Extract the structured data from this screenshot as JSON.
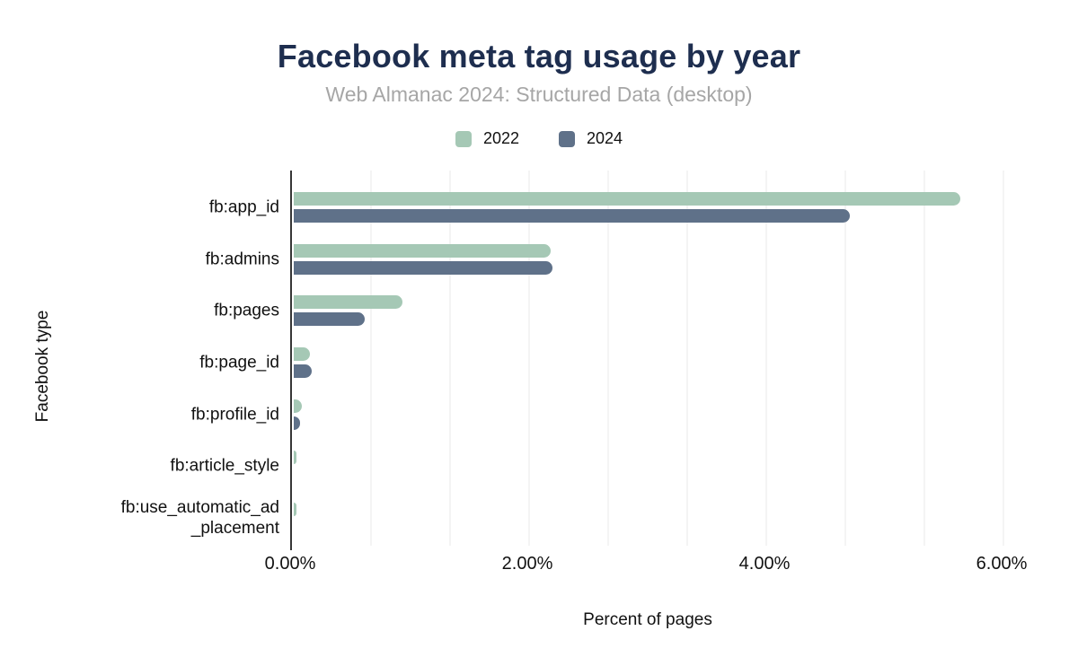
{
  "colors": {
    "background": "#ffffff",
    "title_text": "#1e2e4f",
    "subtitle_text": "#a6a6a6",
    "axis_text": "#111111",
    "axis_line": "#373737",
    "gridline": "#f4f4f4"
  },
  "chart_data": {
    "type": "bar",
    "orientation": "horizontal",
    "title": "Facebook meta tag usage by year",
    "subtitle": "Web Almanac 2024: Structured Data (desktop)",
    "xlabel": "Percent of pages",
    "ylabel": "Facebook type",
    "categories": [
      "fb:app_id",
      "fb:admins",
      "fb:pages",
      "fb:page_id",
      "fb:profile_id",
      "fb:article_style",
      "fb:use_automatic_ad\n_placement"
    ],
    "series": [
      {
        "name": "2022",
        "color": "#a5c8b5",
        "values": [
          5.62,
          2.17,
          0.92,
          0.14,
          0.07,
          0.02,
          0.01
        ]
      },
      {
        "name": "2024",
        "color": "#5f7189",
        "values": [
          4.69,
          2.18,
          0.6,
          0.15,
          0.05,
          0.0,
          0.0
        ]
      }
    ],
    "x_axis": {
      "ticks": [
        {
          "value": 0,
          "label": "0.00%"
        },
        {
          "value": 2,
          "label": "2.00%"
        },
        {
          "value": 4,
          "label": "4.00%"
        },
        {
          "value": 6,
          "label": "6.00%"
        }
      ],
      "range": [
        0,
        6.34
      ],
      "minor_gridline_interval": 0.6667
    },
    "legend": {
      "position": "top"
    },
    "grid": "vertical-minor-on"
  }
}
